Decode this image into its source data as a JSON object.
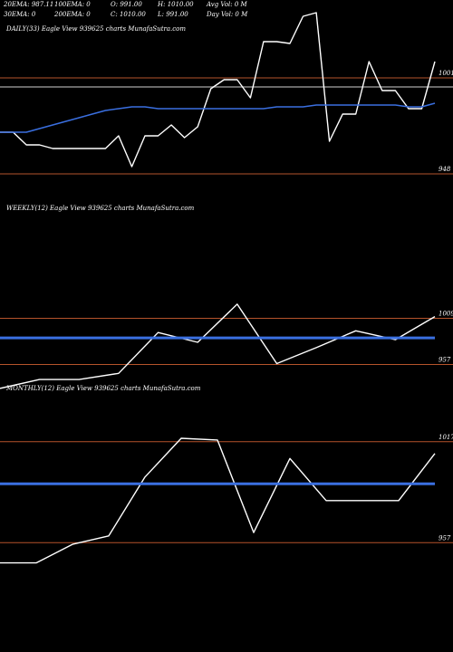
{
  "header": {
    "row1": [
      {
        "label": "20EMA: 987.11"
      },
      {
        "label": "100EMA: 0"
      },
      {
        "label": "O: 991.00"
      },
      {
        "label": "H: 1010.00"
      },
      {
        "label": "Avg Vol: 0  M"
      }
    ],
    "row2": [
      {
        "label": "30EMA: 0"
      },
      {
        "label": "200EMA: 0"
      },
      {
        "label": "C: 1010.00"
      },
      {
        "label": "L: 991.00"
      },
      {
        "label": "Day Vol: 0  M"
      }
    ]
  },
  "colors": {
    "background": "#000000",
    "price_line": "#ffffff",
    "ema_line": "#3a6fe0",
    "level_line": "#b5532b",
    "gray_line": "#8a8a8a"
  },
  "chart_data": [
    {
      "type": "line",
      "name": "daily",
      "title": "DAILY(33) Eagle  View  939625 charts MunafaSutra.com",
      "ylim": [
        937,
        1025
      ],
      "levels": [
        {
          "label": "1001",
          "value": 1001
        },
        {
          "label": "948",
          "value": 948
        }
      ],
      "gray_level": 996,
      "series": [
        {
          "values": [
            971,
            971,
            964,
            964,
            962,
            962,
            962,
            962,
            962,
            969,
            952,
            969,
            969,
            975,
            968,
            974,
            995,
            1000,
            1000,
            990,
            1021,
            1021,
            1020,
            1035,
            1037,
            966,
            981,
            981,
            1010,
            994,
            994,
            984,
            984,
            1010
          ]
        },
        {
          "values": [
            971,
            971,
            971,
            973,
            975,
            977,
            979,
            981,
            983,
            984,
            985,
            985,
            984,
            984,
            984,
            984,
            984,
            984,
            984,
            984,
            984,
            985,
            985,
            985,
            986,
            986,
            986,
            986,
            986,
            986,
            986,
            985,
            985,
            987
          ]
        }
      ]
    },
    {
      "type": "line",
      "name": "weekly",
      "title": "WEEKLY(12) Eagle  View  939625 charts MunafaSutra.com",
      "ylim": [
        934,
        1127
      ],
      "levels": [
        {
          "label": "1009",
          "value": 1009
        },
        {
          "label": "957",
          "value": 957
        }
      ],
      "series": [
        {
          "values": [
            930,
            940,
            940,
            947,
            993,
            982,
            1025,
            958,
            976,
            995,
            985,
            1011
          ]
        },
        {
          "values": [
            987,
            987,
            987,
            987,
            987,
            987,
            987,
            987,
            987,
            987,
            987,
            987
          ]
        }
      ]
    },
    {
      "type": "line",
      "name": "monthly",
      "title": "MONTHLY(12) Eagle  View  939625 charts MunafaSutra.com",
      "ylim": [
        934,
        1047
      ],
      "levels": [
        {
          "label": "1017",
          "value": 1017
        },
        {
          "label": "957",
          "value": 957
        }
      ],
      "series": [
        {
          "values": [
            945,
            945,
            956,
            961,
            996,
            1019,
            1018,
            963,
            1007,
            982,
            982,
            982,
            1010
          ]
        },
        {
          "values": [
            992,
            992,
            992,
            992,
            992,
            992,
            992,
            992,
            992,
            992,
            992,
            992,
            992
          ]
        }
      ]
    }
  ]
}
